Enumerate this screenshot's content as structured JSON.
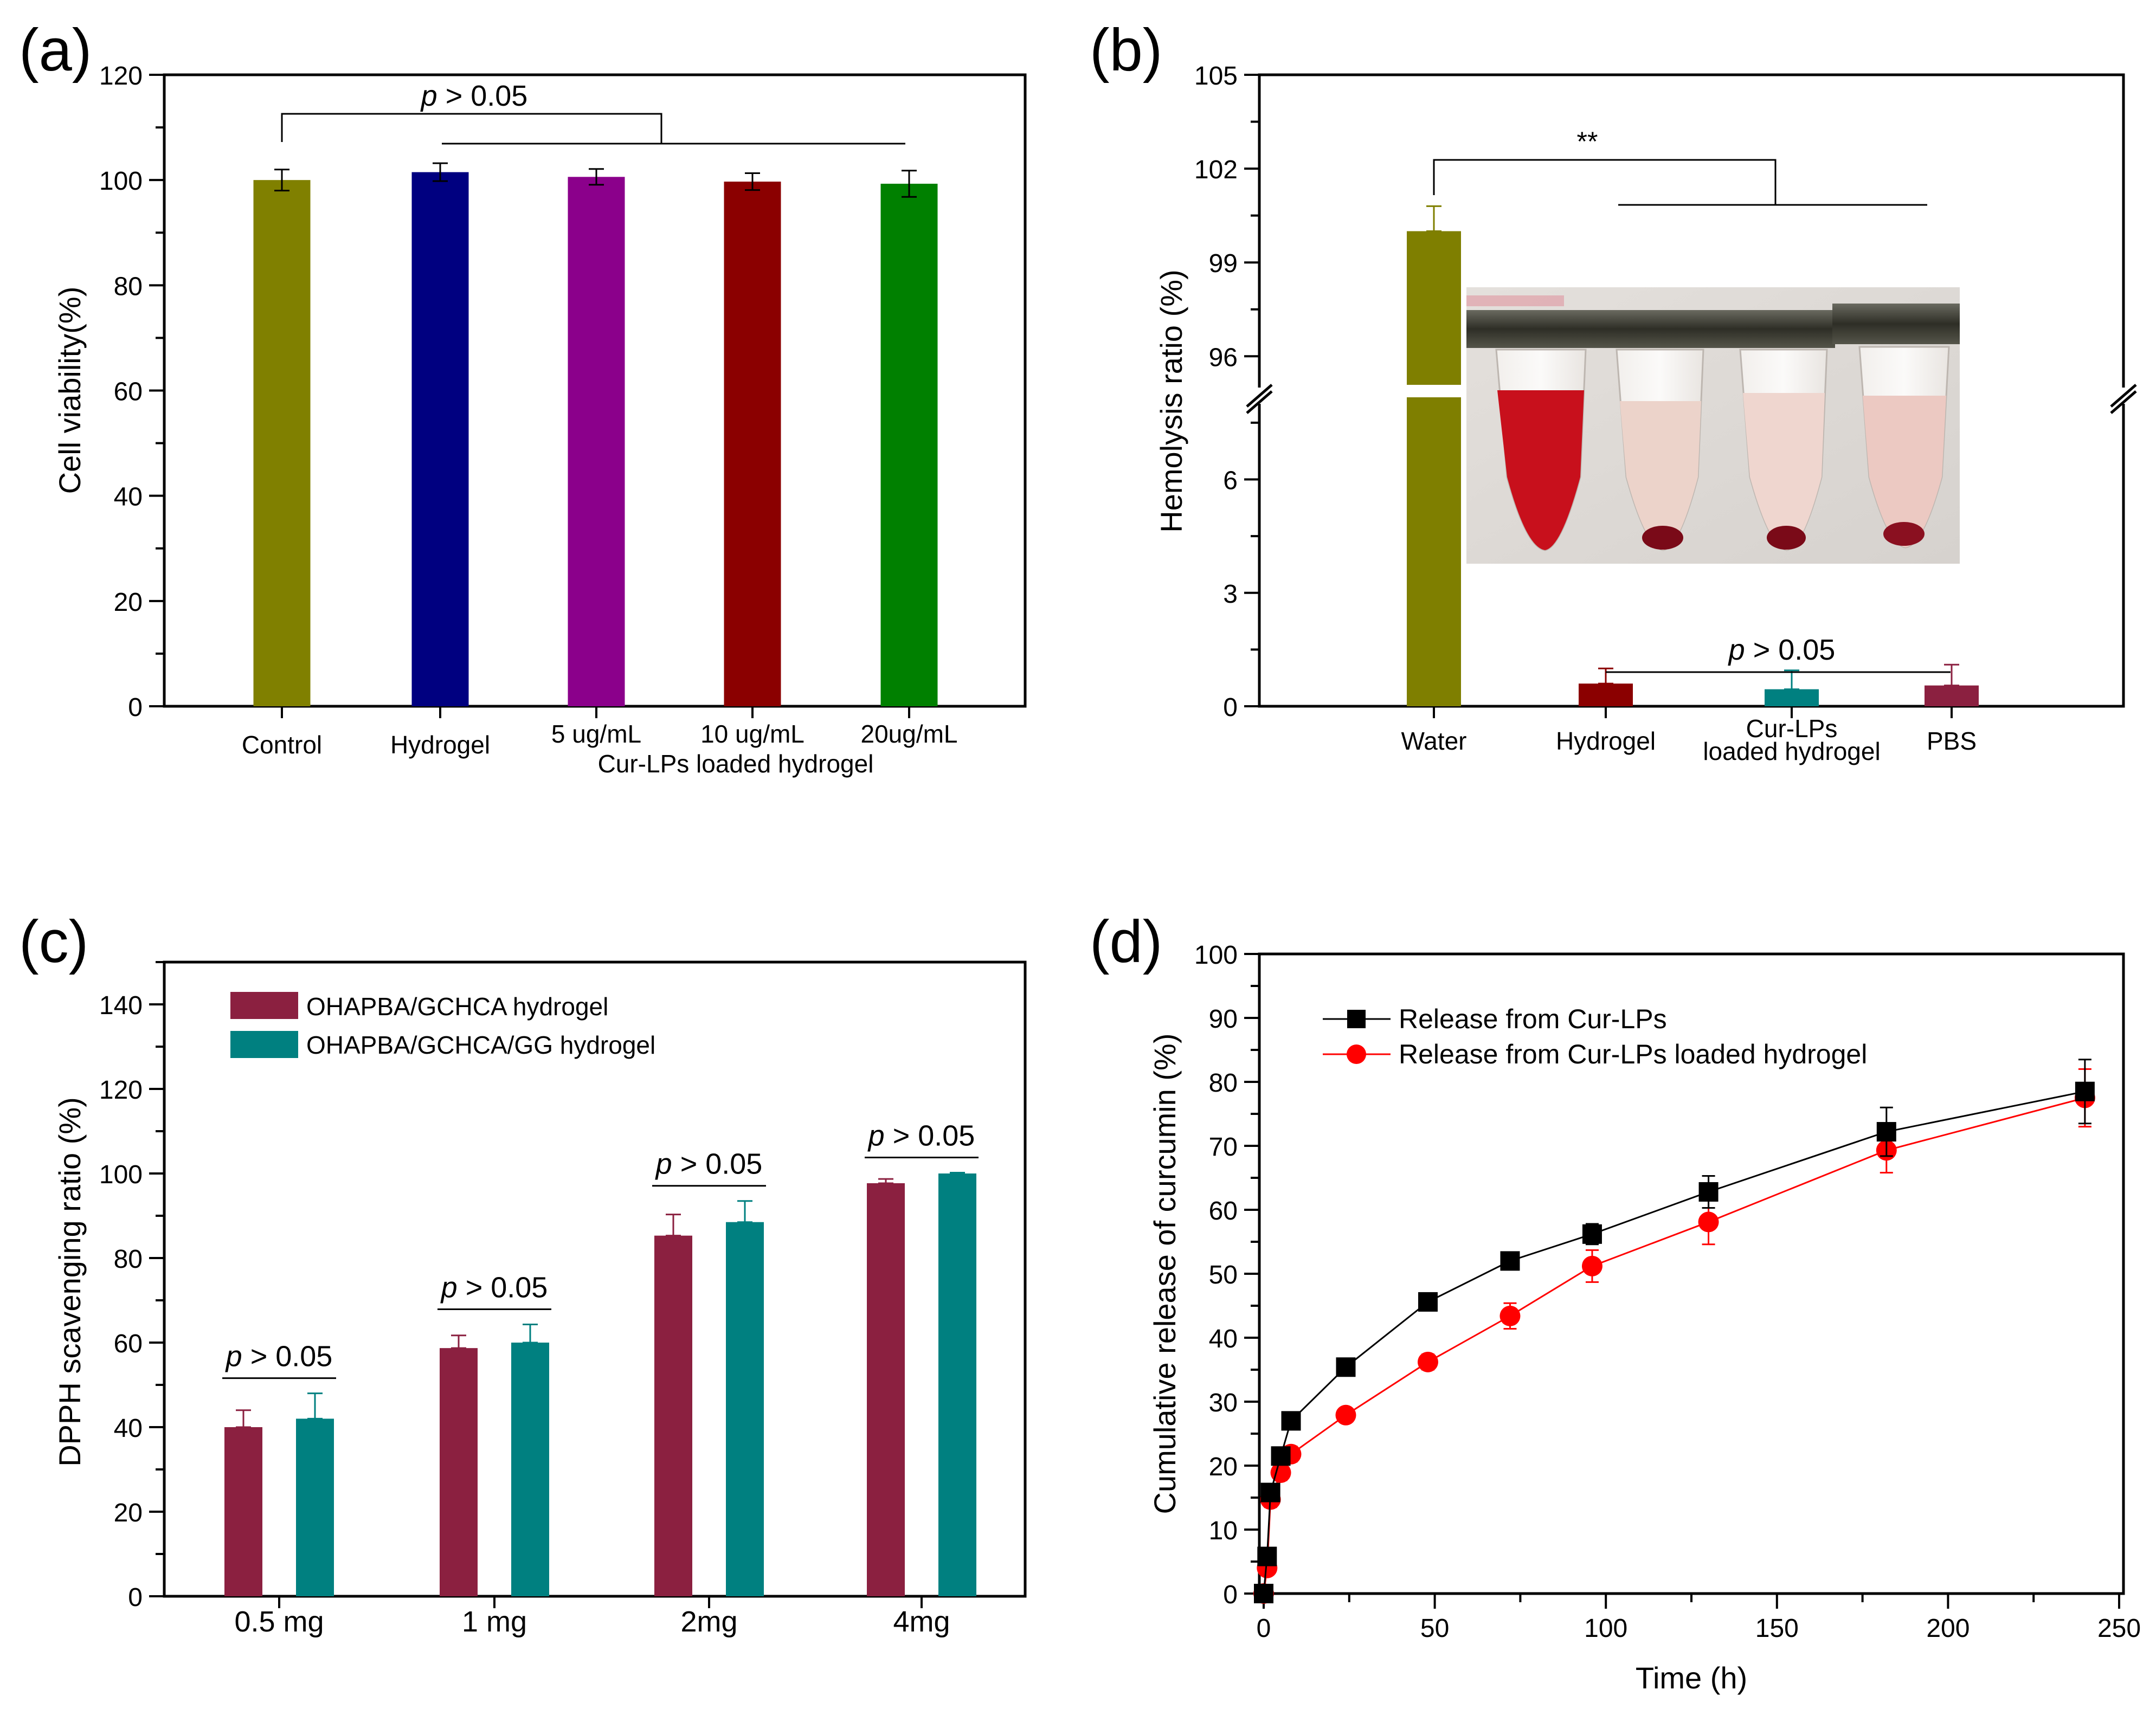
{
  "chart_data": [
    {
      "panel": "(a)",
      "type": "bar",
      "ylabel": "Cell viability(%)",
      "ylim": [
        0,
        120
      ],
      "yticks": [
        "0",
        "20",
        "40",
        "60",
        "80",
        "100",
        "120"
      ],
      "categories": [
        "Control",
        "Hydrogel",
        "5 ug/mL",
        "10 ug/mL",
        "20ug/mL"
      ],
      "group_label": "Cur-LPs loaded hydrogel",
      "values": [
        100.0,
        101.5,
        100.6,
        99.7,
        99.3
      ],
      "errors": [
        2.0,
        1.7,
        1.5,
        1.6,
        2.5
      ],
      "colors": [
        "#808000",
        "#000080",
        "#8b008b",
        "#8b0000",
        "#008000"
      ],
      "annotation_italic": "p",
      "annotation_rest": " > 0.05"
    },
    {
      "panel": "(b)",
      "type": "bar",
      "ylabel": "Hemolysis ratio (%)",
      "yticks_lower": [
        "0",
        "3",
        "6"
      ],
      "yticks_upper": [
        "96",
        "99",
        "102",
        "105"
      ],
      "ylim_lower": [
        0,
        8
      ],
      "ylim_upper": [
        95,
        105
      ],
      "categories": [
        "Water",
        "Hydrogel",
        "Cur-LPs\nloaded hydrogel",
        "PBS"
      ],
      "category_lines": [
        [
          "Water"
        ],
        [
          "Hydrogel"
        ],
        [
          "Cur-LPs",
          "loaded hydrogel"
        ],
        [
          "PBS"
        ]
      ],
      "values": [
        100.0,
        0.6,
        0.45,
        0.55
      ],
      "errors": [
        0.8,
        0.4,
        0.5,
        0.55
      ],
      "colors": [
        "#7f7f00",
        "#8b0000",
        "#008080",
        "#8b2040"
      ],
      "annotation_stars": "**",
      "annotation_italic": "p",
      "annotation_rest": " > 0.05"
    },
    {
      "panel": "(c)",
      "type": "bar",
      "ylabel": "DPPH scavenging ratio (%)",
      "ylim": [
        0,
        140
      ],
      "yticks": [
        "0",
        "20",
        "40",
        "60",
        "80",
        "100",
        "120",
        "140"
      ],
      "categories": [
        "0.5 mg",
        "1 mg",
        "2mg",
        "4mg"
      ],
      "series": [
        {
          "name": "OHAPBA/GCHCA hydrogel",
          "color": "#8b2040",
          "values": [
            40.0,
            58.7,
            85.3,
            97.7
          ],
          "errors": [
            4.0,
            3.0,
            5.0,
            1.0
          ]
        },
        {
          "name": "OHAPBA/GCHCA/GG hydrogel",
          "color": "#008080",
          "values": [
            42.0,
            60.0,
            88.5,
            100.0
          ],
          "errors": [
            6.0,
            4.3,
            5.0,
            0.2
          ]
        }
      ],
      "annotation_italic": "p",
      "annotation_rest": " > 0.05"
    },
    {
      "panel": "(d)",
      "type": "line",
      "xlabel": "Time (h)",
      "ylabel": "Cumulative release of curcumin (%)",
      "xlim": [
        0,
        250
      ],
      "ylim": [
        0,
        100
      ],
      "xticks": [
        "0",
        "50",
        "100",
        "150",
        "200",
        "250"
      ],
      "yticks": [
        "0",
        "10",
        "20",
        "30",
        "40",
        "50",
        "60",
        "70",
        "80",
        "90",
        "100"
      ],
      "series": [
        {
          "name": "Release from Cur-LPs",
          "color": "#000000",
          "marker": "square",
          "x": [
            0,
            1,
            2,
            5,
            8,
            24,
            48,
            72,
            96,
            130,
            182,
            240
          ],
          "y": [
            0,
            5.8,
            15.8,
            21.5,
            27.0,
            35.4,
            45.6,
            52.0,
            56.2,
            62.8,
            72.2,
            78.5
          ],
          "err": [
            0,
            0.5,
            0.8,
            1.0,
            0.8,
            0.8,
            0.8,
            1.0,
            1.6,
            2.5,
            3.8,
            5.0
          ]
        },
        {
          "name": "Release from Cur-LPs loaded hydrogel",
          "color": "#ff0000",
          "marker": "circle",
          "x": [
            0,
            1,
            2,
            5,
            8,
            24,
            48,
            72,
            96,
            130,
            182,
            240
          ],
          "y": [
            0,
            4.0,
            14.7,
            18.9,
            21.8,
            27.9,
            36.2,
            43.4,
            51.2,
            58.1,
            69.3,
            77.5
          ],
          "err": [
            0,
            0.6,
            1.2,
            1.2,
            1.2,
            0.8,
            1.2,
            2.0,
            2.5,
            3.5,
            3.5,
            4.5
          ]
        }
      ]
    }
  ],
  "inset_photo_description_colors": {
    "blood": "#c8101c",
    "pale": "#e8c4b8",
    "cap": "#3a3a32"
  }
}
